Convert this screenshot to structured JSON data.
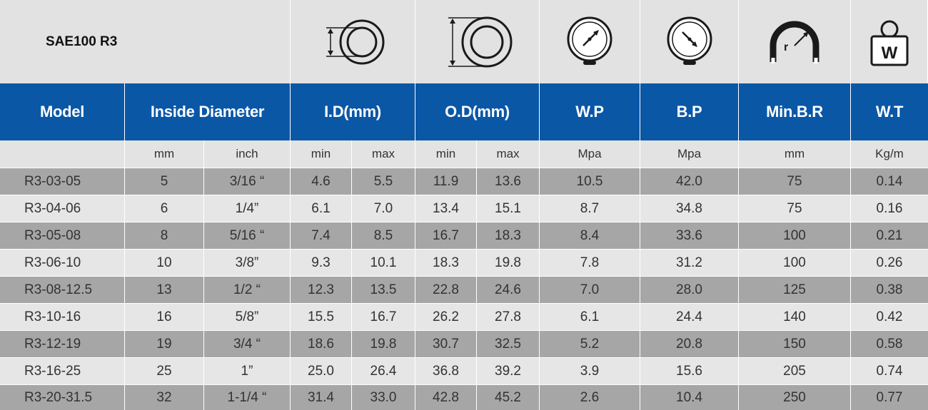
{
  "title": "SAE100 R3",
  "headers": [
    "Model",
    "Inside Diameter",
    "I.D(mm)",
    "O.D(mm)",
    "W.P",
    "B.P",
    "Min.B.R",
    "W.T"
  ],
  "units": [
    "",
    "mm",
    "inch",
    "min",
    "max",
    "min",
    "max",
    "Mpa",
    "Mpa",
    "mm",
    "Kg/m"
  ],
  "icons": [
    "inner-diameter-icon",
    "outer-diameter-icon",
    "working-pressure-gauge-icon",
    "burst-pressure-gauge-icon",
    "bend-radius-icon",
    "weight-icon"
  ],
  "icon_labels": {
    "bend_radius": "r",
    "weight": "W"
  },
  "colors": {
    "header_blue": "#0a57a6",
    "row_dark": "#a6a6a6",
    "row_light": "#e6e6e6",
    "icon_bar": "#e2e2e2"
  },
  "rows": [
    [
      "R3-03-05",
      "5",
      "3/16 “",
      "4.6",
      "5.5",
      "11.9",
      "13.6",
      "10.5",
      "42.0",
      "75",
      "0.14"
    ],
    [
      "R3-04-06",
      "6",
      "1/4”",
      "6.1",
      "7.0",
      "13.4",
      "15.1",
      "8.7",
      "34.8",
      "75",
      "0.16"
    ],
    [
      "R3-05-08",
      "8",
      "5/16 “",
      "7.4",
      "8.5",
      "16.7",
      "18.3",
      "8.4",
      "33.6",
      "100",
      "0.21"
    ],
    [
      "R3-06-10",
      "10",
      "3/8”",
      "9.3",
      "10.1",
      "18.3",
      "19.8",
      "7.8",
      "31.2",
      "100",
      "0.26"
    ],
    [
      "R3-08-12.5",
      "13",
      "1/2 “",
      "12.3",
      "13.5",
      "22.8",
      "24.6",
      "7.0",
      "28.0",
      "125",
      "0.38"
    ],
    [
      "R3-10-16",
      "16",
      "5/8”",
      "15.5",
      "16.7",
      "26.2",
      "27.8",
      "6.1",
      "24.4",
      "140",
      "0.42"
    ],
    [
      "R3-12-19",
      "19",
      "3/4 “",
      "18.6",
      "19.8",
      "30.7",
      "32.5",
      "5.2",
      "20.8",
      "150",
      "0.58"
    ],
    [
      "R3-16-25",
      "25",
      "1”",
      "25.0",
      "26.4",
      "36.8",
      "39.2",
      "3.9",
      "15.6",
      "205",
      "0.74"
    ],
    [
      "R3-20-31.5",
      "32",
      "1-1/4 “",
      "31.4",
      "33.0",
      "42.8",
      "45.2",
      "2.6",
      "10.4",
      "250",
      "0.77"
    ]
  ]
}
